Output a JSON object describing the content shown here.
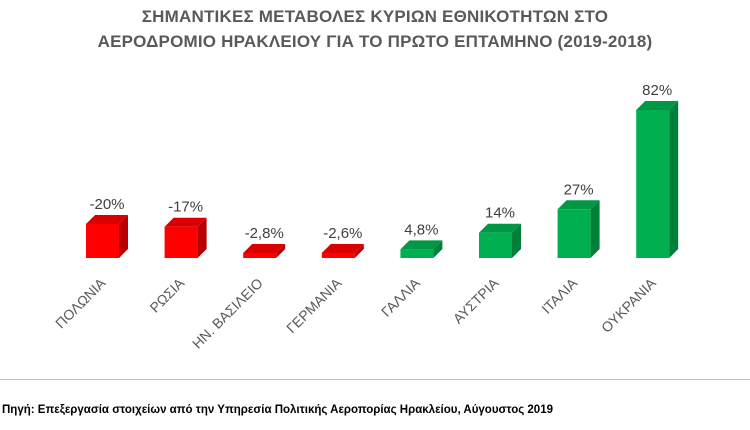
{
  "chart_data": {
    "type": "bar",
    "title_lines": [
      "ΣΗΜΑΝΤΙΚΕΣ ΜΕΤΑΒΟΛΕΣ ΚΥΡΙΩΝ ΕΘΝΙΚΟΤΗΤΩΝ ΣΤΟ",
      "ΑΕΡΟΔΡΟΜΙΟ ΗΡΑΚΛΕΙΟΥ ΓΙΑ ΤΟ ΠΡΩΤΟ ΕΠΤΑΜΗΝΟ (2019-2018)"
    ],
    "categories": [
      "ΠΟΛΩΝΙΑ",
      "ΡΩΣΙΑ",
      "ΗΝ. ΒΑΣΙΛΕΙΟ",
      "ΓΕΡΜΑΝΙΑ",
      "ΓΑΛΛΙΑ",
      "ΑΥΣΤΡΙΑ",
      "ΙΤΑΛΙΑ",
      "ΟΥΚΡΑΝΙΑ"
    ],
    "values": [
      -20,
      -17,
      -2.8,
      -2.6,
      4.8,
      14,
      27,
      82
    ],
    "data_labels": [
      "-20%",
      "-17%",
      "-2,8%",
      "-2,6%",
      "4,8%",
      "14%",
      "27%",
      "82%"
    ],
    "colors": {
      "negative": "#ff0000",
      "positive": "#00b050"
    },
    "grid": false,
    "legend": "none"
  },
  "source_text": "Πηγή: Επεξεργασία στοιχείων από την Υπηρεσία Πολιτικής Αεροπορίας Ηρακλείου, Αύγουστος 2019"
}
